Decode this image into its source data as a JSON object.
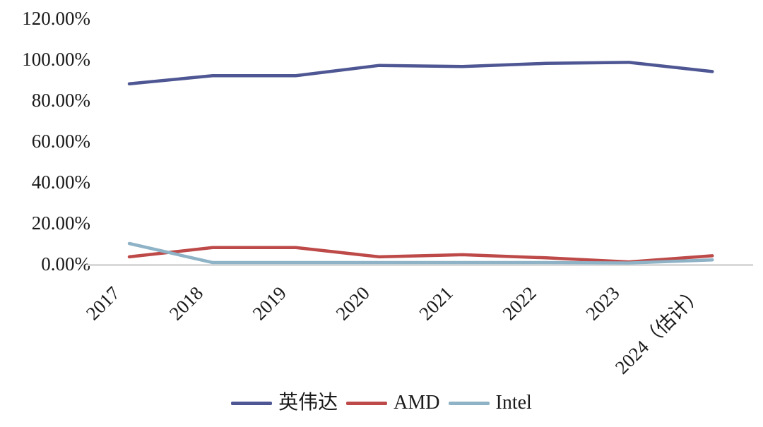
{
  "chart_data": {
    "type": "line",
    "categories": [
      "2017",
      "2018",
      "2019",
      "2020",
      "2021",
      "2022",
      "2023",
      "2024（估计）"
    ],
    "series": [
      {
        "key": "nvidia",
        "name": "英伟达",
        "color": "#4e5793",
        "values": [
          88,
          92,
          92,
          97,
          96.5,
          98,
          98.5,
          94
        ]
      },
      {
        "key": "amd",
        "name": "AMD",
        "color": "#bd4a48",
        "values": [
          3.5,
          8,
          8,
          3.5,
          4.5,
          3,
          1,
          4
        ]
      },
      {
        "key": "intel",
        "name": "Intel",
        "color": "#8fb3c6",
        "values": [
          10,
          0.7,
          0.7,
          0.7,
          0.7,
          0.7,
          0.5,
          2
        ]
      }
    ],
    "yticks": {
      "values": [
        0,
        20,
        40,
        60,
        80,
        100,
        120
      ],
      "labels": [
        "0.00%",
        "20.00%",
        "40.00%",
        "60.00%",
        "80.00%",
        "100.00%",
        "120.00%"
      ]
    },
    "ylim": [
      0,
      120
    ],
    "grid": false,
    "legend_position": "bottom",
    "axis_color": "#d9d9d9",
    "text_color": "#1a1a1a"
  }
}
